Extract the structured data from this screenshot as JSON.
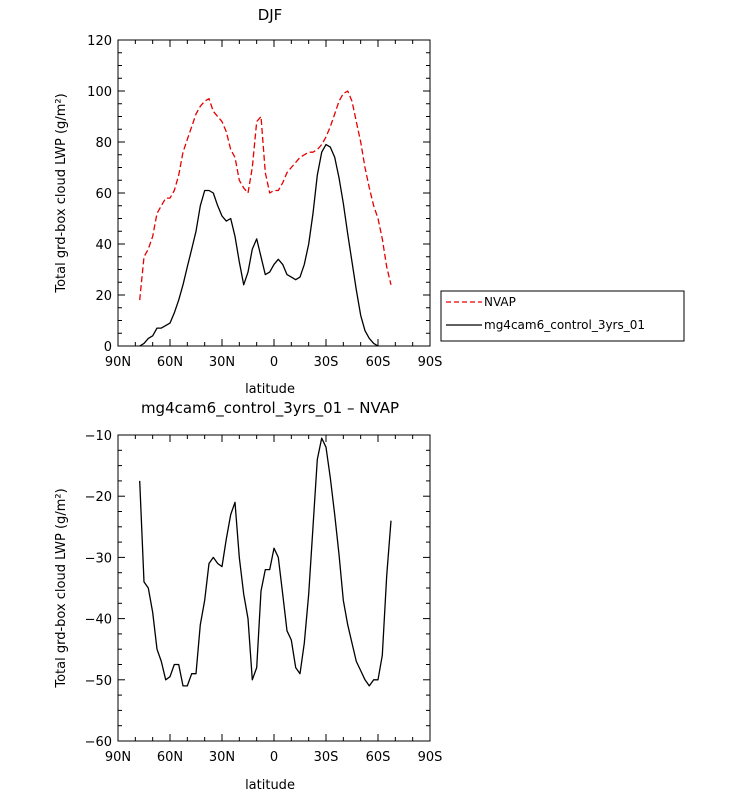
{
  "chart_data": [
    {
      "type": "line",
      "title": "DJF",
      "xlabel": "latitude",
      "ylabel": "Total grd-box cloud LWP (g/m²)",
      "xlim": [
        90,
        -90
      ],
      "ylim": [
        0,
        120
      ],
      "x_ticks": [
        90,
        60,
        30,
        0,
        -30,
        -60,
        -90
      ],
      "x_tick_labels": [
        "90N",
        "60N",
        "30N",
        "0",
        "30S",
        "60S",
        "90S"
      ],
      "y_ticks": [
        0,
        20,
        40,
        60,
        80,
        100,
        120
      ],
      "y_tick_labels": [
        "0",
        "20",
        "40",
        "60",
        "80",
        "100",
        "120"
      ],
      "legend": {
        "placement": "right"
      },
      "series": [
        {
          "name": "NVAP",
          "color": "#e60000",
          "dash": "dashed",
          "x": [
            77.5,
            75,
            72.5,
            70,
            67.5,
            65,
            62.5,
            60,
            57.5,
            55,
            52.5,
            50,
            47.5,
            45,
            42.5,
            40,
            37.5,
            35,
            32.5,
            30,
            27.5,
            25,
            22.5,
            20,
            17.5,
            15,
            12.5,
            10,
            7.5,
            5,
            2.5,
            0,
            -2.5,
            -5,
            -7.5,
            -10,
            -12.5,
            -15,
            -17.5,
            -20,
            -22.5,
            -25,
            -27.5,
            -30,
            -32.5,
            -35,
            -37.5,
            -40,
            -42.5,
            -45,
            -47.5,
            -50,
            -52.5,
            -55,
            -57.5,
            -60,
            -62.5,
            -65,
            -67.5,
            -70,
            -72.5,
            -75,
            -77.5
          ],
          "values": [
            18,
            35,
            38,
            43,
            52,
            55,
            58,
            58,
            61,
            67,
            76,
            81,
            86,
            91,
            94,
            96,
            97,
            92,
            90,
            88,
            84,
            77,
            74,
            65,
            62,
            60,
            70,
            88,
            90,
            68,
            60,
            61,
            61,
            64,
            68,
            70,
            72,
            74,
            75,
            76,
            76,
            77,
            79,
            82,
            86,
            91,
            96,
            99,
            100,
            96,
            88,
            80,
            70,
            62,
            55,
            50,
            42,
            31,
            24,
            null,
            null,
            null,
            null
          ]
        },
        {
          "name": "mg4cam6_control_3yrs_01",
          "color": "#000000",
          "dash": "solid",
          "x": [
            77.5,
            75,
            72.5,
            70,
            67.5,
            65,
            62.5,
            60,
            57.5,
            55,
            52.5,
            50,
            47.5,
            45,
            42.5,
            40,
            37.5,
            35,
            32.5,
            30,
            27.5,
            25,
            22.5,
            20,
            17.5,
            15,
            12.5,
            10,
            7.5,
            5,
            2.5,
            0,
            -2.5,
            -5,
            -7.5,
            -10,
            -12.5,
            -15,
            -17.5,
            -20,
            -22.5,
            -25,
            -27.5,
            -30,
            -32.5,
            -35,
            -37.5,
            -40,
            -42.5,
            -45,
            -47.5,
            -50,
            -52.5,
            -55,
            -57.5,
            -60,
            -62.5,
            -65,
            -67.5,
            -70,
            -72.5,
            -75,
            -77.5
          ],
          "values": [
            0,
            1,
            3,
            4,
            7,
            7,
            8,
            9,
            13,
            18,
            24,
            31,
            38,
            45,
            55,
            61,
            61,
            60,
            55,
            51,
            49,
            50,
            43,
            33,
            24,
            29,
            38,
            42,
            35,
            28,
            29,
            32,
            34,
            32,
            28,
            27,
            26,
            27,
            32,
            40,
            52,
            67,
            76,
            79,
            78,
            74,
            66,
            56,
            44,
            33,
            22,
            12,
            6,
            3,
            1,
            0,
            null,
            null,
            null,
            null,
            null,
            null,
            null
          ]
        }
      ]
    },
    {
      "type": "line",
      "title": "mg4cam6_control_3yrs_01 – NVAP",
      "xlabel": "latitude",
      "ylabel": "Total grd-box cloud LWP (g/m²)",
      "xlim": [
        90,
        -90
      ],
      "ylim": [
        -60,
        -10
      ],
      "x_ticks": [
        90,
        60,
        30,
        0,
        -30,
        -60,
        -90
      ],
      "x_tick_labels": [
        "90N",
        "60N",
        "30N",
        "0",
        "30S",
        "60S",
        "90S"
      ],
      "y_ticks": [
        -60,
        -50,
        -40,
        -30,
        -20,
        -10
      ],
      "y_tick_labels": [
        "−60",
        "−50",
        "−40",
        "−30",
        "−20",
        "−10"
      ],
      "series": [
        {
          "color": "#000000",
          "dash": "solid",
          "x": [
            77.5,
            75,
            72.5,
            70,
            67.5,
            65,
            62.5,
            60,
            57.5,
            55,
            52.5,
            50,
            47.5,
            45,
            42.5,
            40,
            37.5,
            35,
            32.5,
            30,
            27.5,
            25,
            22.5,
            20,
            17.5,
            15,
            12.5,
            10,
            7.5,
            5,
            2.5,
            0,
            -2.5,
            -5,
            -7.5,
            -10,
            -12.5,
            -15,
            -17.5,
            -20,
            -22.5,
            -25,
            -27.5,
            -30,
            -32.5,
            -35,
            -37.5,
            -40,
            -42.5,
            -45,
            -47.5,
            -50,
            -52.5,
            -55,
            -57.5,
            -60,
            -62.5,
            -65,
            -67.5,
            -70,
            -72.5,
            -75,
            -77.5
          ],
          "values": [
            -17.5,
            -34,
            -35,
            -39,
            -45,
            -47,
            -50,
            -49.5,
            -47.5,
            -47.5,
            -51,
            -51,
            -49,
            -49,
            -41,
            -37,
            -31,
            -30,
            -31,
            -31.5,
            -27,
            -23,
            -21,
            -30,
            -36,
            -40,
            -50,
            -48,
            -35.5,
            -32,
            -32,
            -28.5,
            -30,
            -36,
            -42,
            -43.5,
            -48,
            -49,
            -44,
            -36,
            -25,
            -14,
            -10.5,
            -12,
            -17,
            -23,
            -29.5,
            -37,
            -41,
            -44,
            -47,
            -48.5,
            -50,
            -51,
            -50,
            -50,
            -46,
            -33,
            -24,
            null,
            null,
            null,
            null
          ]
        }
      ]
    }
  ]
}
